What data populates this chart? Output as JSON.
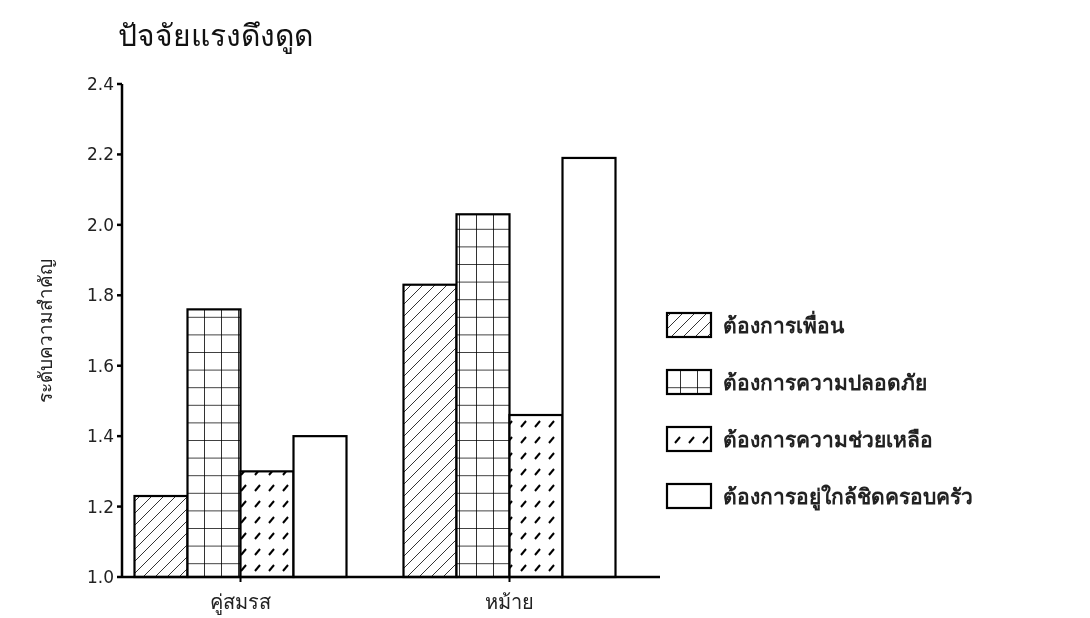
{
  "chart_data": {
    "type": "bar",
    "title": "ปัจจัยแรงดึงดูด",
    "ylabel": "ระดับความสำคัญ",
    "categories": [
      "คู่สมรส",
      "หม้าย"
    ],
    "series": [
      {
        "name": "ต้องการเพื่อน",
        "color": "#000000",
        "values": [
          1.23,
          1.83
        ]
      },
      {
        "name": "ต้องการความปลอดภัย",
        "color": "#000000",
        "values": [
          1.76,
          2.03
        ]
      },
      {
        "name": "ต้องการความช่วยเหลือ",
        "color": "#000000",
        "values": [
          1.3,
          1.46
        ]
      },
      {
        "name": "ต้องการอยู่ใกล้ชิดครอบครัว",
        "color": "#000000",
        "values": [
          1.4,
          2.19
        ]
      }
    ],
    "ylim": [
      1.0,
      2.4
    ],
    "yticks": [
      {
        "value": 1.0,
        "label": "1.0"
      },
      1.2,
      1.4,
      1.6,
      1.8,
      {
        "value": 2.0,
        "label": "2.0"
      },
      2.2,
      2.4
    ],
    "grid": false,
    "legend": "right"
  }
}
